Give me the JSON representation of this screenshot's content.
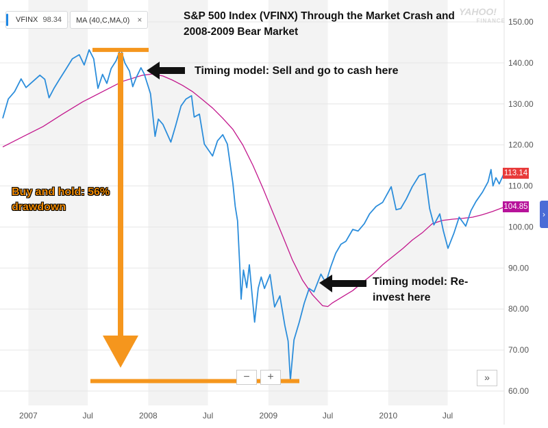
{
  "legend": {
    "ticker_label": "VFINX",
    "ticker_value": "98.34",
    "ma_label": "MA (40,C,MA,0)",
    "ma_close": "×"
  },
  "watermark": {
    "brand": "YAHOO!",
    "sub": "FINANCE"
  },
  "annotations": {
    "title": "S&P 500 Index (VFINX) Through the Market Crash and 2008-2009 Bear Market",
    "sell": "Timing model: Sell and go to cash here",
    "reinvest": "Timing model: Re-invest here",
    "buy_hold": "Buy and hold: 56% drawdown"
  },
  "controls": {
    "zoom_out": "−",
    "zoom_in": "+",
    "expand": "»",
    "side_tab": "›"
  },
  "colors": {
    "price_line": "#2b8ddb",
    "ma_line": "#c2168c",
    "price_badge": "#e83a3a",
    "ma_badge": "#b7139a",
    "arrow_orange": "#f5961d",
    "stripe": "#f3f3f3",
    "grid": "#e6e6e6"
  },
  "chart_data": {
    "type": "line",
    "title": "S&P 500 Index (VFINX) Through the Market Crash and 2008-2009 Bear Market",
    "x_tick_labels": [
      "2007",
      "Jul",
      "2008",
      "Jul",
      "2009",
      "Jul",
      "2010",
      "Jul"
    ],
    "y_ticks": [
      "60.00",
      "70.00",
      "80.00",
      "90.00",
      "100.00",
      "110.00",
      "120.00",
      "130.00",
      "140.00",
      "150.00"
    ],
    "ylim": [
      56.5,
      154.5
    ],
    "xlim": [
      "2006-10-15",
      "2010-12-20"
    ],
    "grid": "horizontal",
    "last_price_label": "113.14",
    "last_ma_label": "104.85",
    "series": [
      {
        "name": "VFINX",
        "x": [
          "2006-10-15",
          "2006-11-01",
          "2006-11-20",
          "2006-12-10",
          "2006-12-25",
          "2007-01-15",
          "2007-02-05",
          "2007-02-20",
          "2007-03-05",
          "2007-03-20",
          "2007-04-05",
          "2007-04-25",
          "2007-05-15",
          "2007-06-05",
          "2007-06-20",
          "2007-07-05",
          "2007-07-19",
          "2007-08-01",
          "2007-08-15",
          "2007-08-28",
          "2007-09-10",
          "2007-09-25",
          "2007-10-09",
          "2007-10-22",
          "2007-11-05",
          "2007-11-15",
          "2007-11-26",
          "2007-12-10",
          "2007-12-20",
          "2008-01-08",
          "2008-01-22",
          "2008-02-01",
          "2008-02-15",
          "2008-03-10",
          "2008-03-25",
          "2008-04-10",
          "2008-04-25",
          "2008-05-12",
          "2008-05-20",
          "2008-06-05",
          "2008-06-20",
          "2008-07-15",
          "2008-07-30",
          "2008-08-15",
          "2008-08-29",
          "2008-09-15",
          "2008-09-22",
          "2008-09-29",
          "2008-10-06",
          "2008-10-10",
          "2008-10-17",
          "2008-10-27",
          "2008-11-04",
          "2008-11-20",
          "2008-12-01",
          "2008-12-10",
          "2008-12-20",
          "2009-01-06",
          "2009-01-20",
          "2009-02-05",
          "2009-02-20",
          "2009-03-02",
          "2009-03-09",
          "2009-03-20",
          "2009-04-05",
          "2009-04-20",
          "2009-05-05",
          "2009-05-20",
          "2009-06-10",
          "2009-06-25",
          "2009-07-10",
          "2009-07-25",
          "2009-08-10",
          "2009-08-25",
          "2009-09-15",
          "2009-10-01",
          "2009-10-20",
          "2009-11-05",
          "2009-11-25",
          "2009-12-15",
          "2010-01-10",
          "2010-01-25",
          "2010-02-08",
          "2010-02-25",
          "2010-03-15",
          "2010-04-05",
          "2010-04-23",
          "2010-05-07",
          "2010-05-20",
          "2010-06-07",
          "2010-06-18",
          "2010-07-02",
          "2010-07-20",
          "2010-08-05",
          "2010-08-25",
          "2010-09-10",
          "2010-09-25",
          "2010-10-15",
          "2010-11-01",
          "2010-11-10",
          "2010-11-16",
          "2010-11-25",
          "2010-12-05",
          "2010-12-20"
        ],
        "y": [
          126.5,
          131.2,
          133.0,
          136.1,
          134.0,
          135.5,
          137.0,
          136.0,
          131.5,
          133.8,
          135.9,
          138.4,
          141.0,
          142.0,
          139.5,
          143.2,
          141.0,
          133.8,
          137.2,
          135.0,
          138.6,
          140.5,
          143.5,
          140.0,
          138.0,
          134.2,
          136.5,
          138.8,
          137.3,
          132.5,
          122.1,
          126.3,
          125.0,
          120.7,
          124.8,
          129.5,
          131.2,
          132.0,
          126.8,
          127.5,
          120.2,
          117.3,
          121.0,
          122.5,
          120.2,
          110.6,
          105.0,
          101.5,
          90.2,
          82.4,
          89.5,
          85.2,
          90.8,
          76.8,
          85.1,
          87.8,
          85.0,
          88.4,
          80.5,
          83.2,
          76.0,
          72.2,
          62.6,
          72.5,
          76.8,
          81.4,
          85.0,
          84.2,
          88.5,
          86.4,
          90.3,
          93.6,
          95.8,
          96.5,
          99.4,
          99.0,
          100.8,
          103.2,
          105.0,
          106.0,
          109.8,
          104.2,
          104.5,
          106.8,
          109.8,
          112.5,
          113.0,
          104.5,
          100.5,
          103.2,
          99.0,
          94.8,
          98.5,
          102.4,
          100.2,
          104.0,
          106.2,
          108.5,
          111.0,
          114.0,
          110.0,
          112.0,
          110.5,
          113.14
        ]
      },
      {
        "name": "MA (40,C,MA,0)",
        "x": [
          "2006-10-15",
          "2006-12-15",
          "2007-02-15",
          "2007-04-15",
          "2007-06-15",
          "2007-08-15",
          "2007-10-15",
          "2007-12-15",
          "2008-01-15",
          "2008-02-15",
          "2008-03-15",
          "2008-04-15",
          "2008-05-15",
          "2008-06-15",
          "2008-07-15",
          "2008-08-15",
          "2008-09-15",
          "2008-10-15",
          "2008-11-15",
          "2008-12-15",
          "2009-01-15",
          "2009-02-15",
          "2009-03-15",
          "2009-04-15",
          "2009-05-15",
          "2009-06-15",
          "2009-07-01",
          "2009-07-15",
          "2009-08-15",
          "2009-09-15",
          "2009-10-15",
          "2009-11-15",
          "2009-12-15",
          "2010-01-15",
          "2010-02-15",
          "2010-03-15",
          "2010-04-15",
          "2010-05-15",
          "2010-06-15",
          "2010-07-15",
          "2010-08-15",
          "2010-09-15",
          "2010-10-15",
          "2010-11-15",
          "2010-12-20"
        ],
        "y": [
          119.5,
          122.0,
          124.5,
          127.5,
          130.5,
          133.0,
          135.5,
          137.0,
          137.3,
          136.8,
          135.8,
          134.5,
          133.0,
          131.0,
          129.0,
          126.5,
          123.8,
          120.0,
          115.0,
          109.5,
          103.5,
          97.5,
          92.0,
          87.0,
          83.5,
          80.8,
          80.6,
          81.5,
          83.0,
          84.5,
          86.5,
          88.5,
          90.8,
          92.8,
          94.8,
          96.8,
          98.6,
          100.8,
          101.6,
          101.9,
          102.1,
          102.4,
          103.0,
          103.8,
          104.85
        ]
      }
    ]
  }
}
